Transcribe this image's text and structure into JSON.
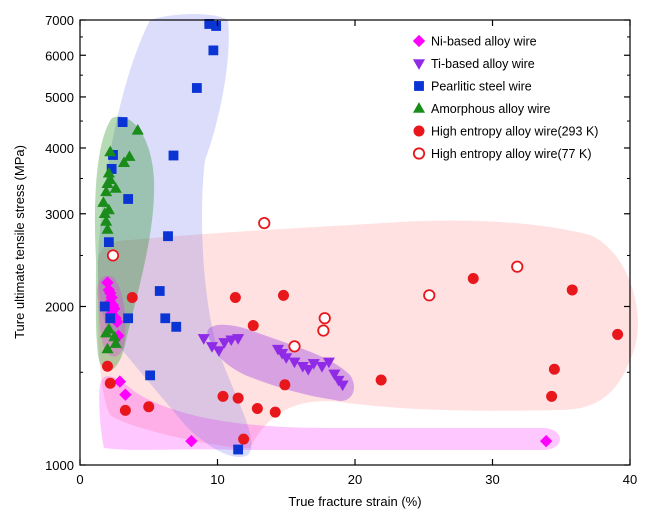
{
  "chart_data": {
    "type": "scatter",
    "xlabel": "True fracture strain (%)",
    "ylabel": "Ture ultimate tensile stress (MPa)",
    "xlim": [
      0,
      40
    ],
    "ylim": [
      1000,
      7000
    ],
    "y_scale": "log",
    "x_ticks": [
      0,
      10,
      20,
      30,
      40
    ],
    "y_ticks": [
      1000,
      2000,
      3000,
      4000,
      5000,
      6000,
      7000
    ],
    "legend_position": "top-right",
    "grid": false,
    "series": [
      {
        "name": "Ni-based alloy wire",
        "marker": "diamond",
        "color": "#ff00ff",
        "filled": true,
        "points": [
          [
            2.0,
            2220
          ],
          [
            2.1,
            2150
          ],
          [
            2.2,
            2120
          ],
          [
            2.3,
            2080
          ],
          [
            2.2,
            2040
          ],
          [
            2.4,
            2010
          ],
          [
            2.5,
            1980
          ],
          [
            2.3,
            1940
          ],
          [
            2.6,
            1900
          ],
          [
            2.7,
            1870
          ],
          [
            2.8,
            1760
          ],
          [
            2.9,
            1440
          ],
          [
            3.3,
            1360
          ],
          [
            8.1,
            1110
          ],
          [
            33.9,
            1110
          ]
        ]
      },
      {
        "name": "Ti-based alloy wire",
        "marker": "triangle-down",
        "color": "#8f2be6",
        "filled": true,
        "points": [
          [
            9.0,
            1740
          ],
          [
            9.6,
            1680
          ],
          [
            10.1,
            1650
          ],
          [
            10.5,
            1710
          ],
          [
            11.0,
            1730
          ],
          [
            11.5,
            1740
          ],
          [
            14.4,
            1660
          ],
          [
            14.7,
            1630
          ],
          [
            15.0,
            1600
          ],
          [
            15.6,
            1570
          ],
          [
            16.2,
            1540
          ],
          [
            16.6,
            1520
          ],
          [
            17.0,
            1560
          ],
          [
            17.6,
            1540
          ],
          [
            18.1,
            1570
          ],
          [
            18.5,
            1490
          ],
          [
            18.8,
            1450
          ],
          [
            19.1,
            1420
          ]
        ]
      },
      {
        "name": "Pearlitic steel wire",
        "marker": "square",
        "color": "#0a35d4",
        "filled": true,
        "points": [
          [
            2.1,
            2650
          ],
          [
            1.8,
            2000
          ],
          [
            2.2,
            1900
          ],
          [
            2.3,
            3650
          ],
          [
            2.4,
            3880
          ],
          [
            3.1,
            4480
          ],
          [
            3.5,
            3200
          ],
          [
            3.5,
            1900
          ],
          [
            5.1,
            1480
          ],
          [
            5.8,
            2140
          ],
          [
            6.2,
            1900
          ],
          [
            6.4,
            2720
          ],
          [
            6.8,
            3870
          ],
          [
            7.0,
            1830
          ],
          [
            8.5,
            5200
          ],
          [
            9.4,
            6880
          ],
          [
            9.9,
            6820
          ],
          [
            9.7,
            6130
          ],
          [
            11.5,
            1070
          ]
        ]
      },
      {
        "name": "Amorphous alloy wire",
        "marker": "triangle-up",
        "color": "#1a8c1a",
        "filled": true,
        "points": [
          [
            1.7,
            3150
          ],
          [
            1.8,
            3000
          ],
          [
            1.9,
            2900
          ],
          [
            2.0,
            2800
          ],
          [
            2.1,
            3050
          ],
          [
            1.9,
            3300
          ],
          [
            2.0,
            3420
          ],
          [
            2.1,
            3580
          ],
          [
            2.2,
            3480
          ],
          [
            2.2,
            3930
          ],
          [
            2.6,
            3350
          ],
          [
            3.2,
            3750
          ],
          [
            3.6,
            3850
          ],
          [
            4.2,
            4320
          ],
          [
            1.9,
            1780
          ],
          [
            2.0,
            1660
          ],
          [
            2.1,
            1810
          ],
          [
            2.5,
            1750
          ],
          [
            2.6,
            1700
          ]
        ]
      },
      {
        "name": "High entropy alloy wire(293 K)",
        "marker": "circle",
        "color": "#e8171c",
        "filled": true,
        "points": [
          [
            2.0,
            1540
          ],
          [
            2.2,
            1430
          ],
          [
            3.3,
            1270
          ],
          [
            3.8,
            2080
          ],
          [
            5.0,
            1290
          ],
          [
            10.4,
            1350
          ],
          [
            11.3,
            2080
          ],
          [
            11.5,
            1340
          ],
          [
            11.9,
            1120
          ],
          [
            12.6,
            1840
          ],
          [
            12.9,
            1280
          ],
          [
            14.2,
            1260
          ],
          [
            14.9,
            1420
          ],
          [
            14.8,
            2100
          ],
          [
            21.9,
            1450
          ],
          [
            28.6,
            2260
          ],
          [
            34.3,
            1350
          ],
          [
            34.5,
            1520
          ],
          [
            35.8,
            2150
          ],
          [
            39.1,
            1770
          ]
        ]
      },
      {
        "name": "High entropy alloy wire(77 K)",
        "marker": "circle",
        "color": "#e8171c",
        "filled": false,
        "points": [
          [
            2.4,
            2500
          ],
          [
            13.4,
            2880
          ],
          [
            15.6,
            1680
          ],
          [
            17.7,
            1800
          ],
          [
            17.8,
            1900
          ],
          [
            25.4,
            2100
          ],
          [
            31.8,
            2380
          ]
        ]
      }
    ],
    "regions": [
      {
        "series": "Ni-based alloy wire",
        "color": "#ff00ff",
        "opacity": 0.22
      },
      {
        "series": "Ti-based alloy wire",
        "color": "#8f2be6",
        "opacity": 0.35
      },
      {
        "series": "Pearlitic steel wire",
        "color": "#5a66e6",
        "opacity": 0.22
      },
      {
        "series": "Amorphous alloy wire",
        "color": "#1a8c1a",
        "opacity": 0.32
      },
      {
        "series": "High entropy alloy wire",
        "color": "#ff4d4d",
        "opacity": 0.17
      }
    ]
  }
}
